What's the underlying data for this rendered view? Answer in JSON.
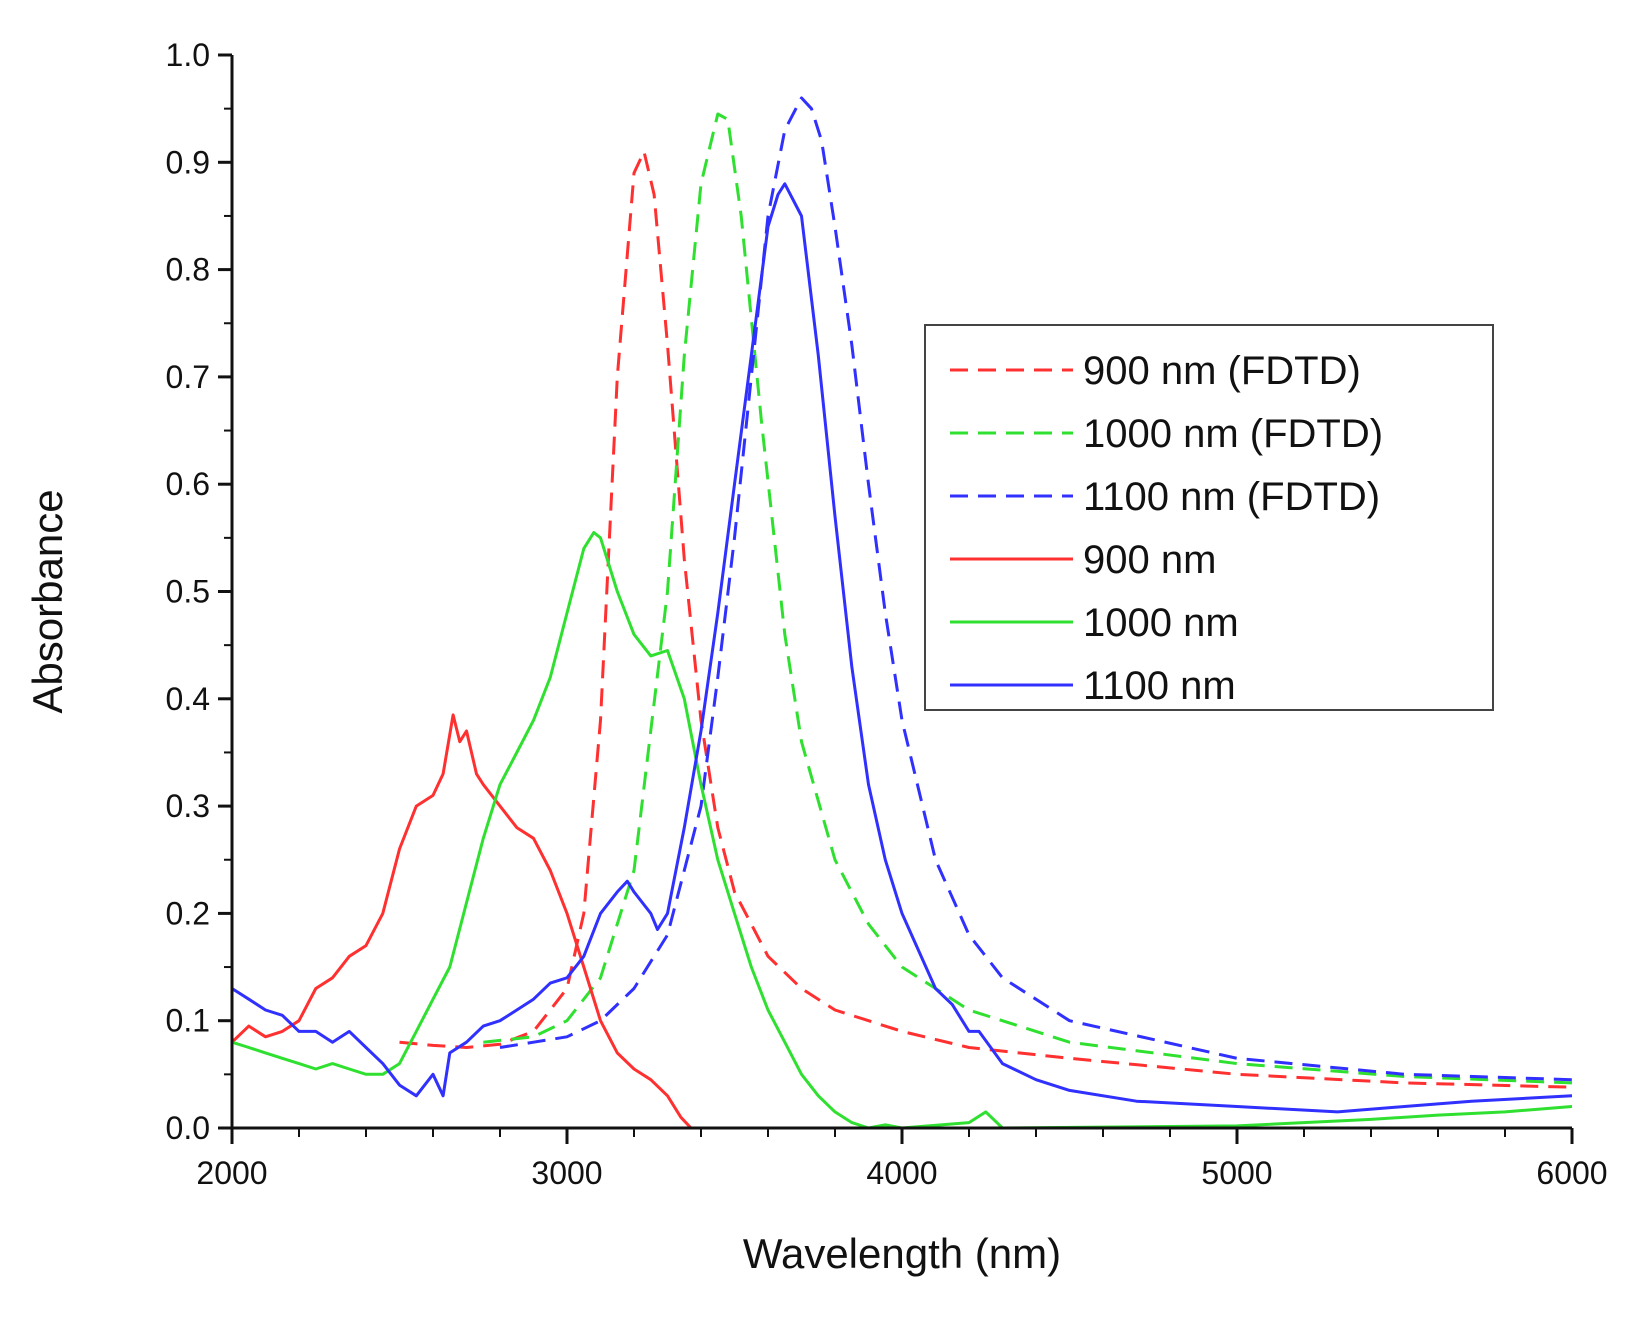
{
  "chart_data": {
    "type": "line",
    "title": "",
    "xlabel": "Wavelength (nm)",
    "ylabel": "Absorbance",
    "xlim": [
      2000,
      6000
    ],
    "ylim": [
      0.0,
      1.0
    ],
    "xticks": [
      2000,
      3000,
      4000,
      5000,
      6000
    ],
    "xtick_labels": [
      "2000",
      "3000",
      "4000",
      "5000",
      "6000"
    ],
    "yticks": [
      0.0,
      0.1,
      0.2,
      0.3,
      0.4,
      0.5,
      0.6,
      0.7,
      0.8,
      0.9,
      1.0
    ],
    "ytick_labels": [
      "0.0",
      "0.1",
      "0.2",
      "0.3",
      "0.4",
      "0.5",
      "0.6",
      "0.7",
      "0.8",
      "0.9",
      "1.0"
    ],
    "grid": false,
    "legend_position": "right",
    "series": [
      {
        "name": "900 nm (FDTD)",
        "color": "#ff3030",
        "style": "dashed",
        "x": [
          2500,
          2600,
          2700,
          2800,
          2900,
          3000,
          3050,
          3100,
          3150,
          3200,
          3230,
          3260,
          3300,
          3350,
          3400,
          3450,
          3500,
          3600,
          3700,
          3800,
          4000,
          4200,
          4500,
          5000,
          5500,
          6000
        ],
        "y": [
          0.08,
          0.077,
          0.075,
          0.078,
          0.09,
          0.13,
          0.2,
          0.38,
          0.7,
          0.89,
          0.91,
          0.87,
          0.73,
          0.53,
          0.38,
          0.28,
          0.22,
          0.16,
          0.13,
          0.11,
          0.09,
          0.075,
          0.065,
          0.05,
          0.042,
          0.038
        ]
      },
      {
        "name": "1000 nm (FDTD)",
        "color": "#30e030",
        "style": "dashed",
        "x": [
          2750,
          2900,
          3000,
          3100,
          3200,
          3300,
          3350,
          3400,
          3450,
          3480,
          3520,
          3580,
          3650,
          3700,
          3800,
          3900,
          4000,
          4200,
          4500,
          5000,
          5500,
          6000
        ],
        "y": [
          0.08,
          0.085,
          0.1,
          0.14,
          0.24,
          0.5,
          0.72,
          0.88,
          0.945,
          0.94,
          0.85,
          0.66,
          0.46,
          0.36,
          0.25,
          0.19,
          0.15,
          0.11,
          0.08,
          0.06,
          0.048,
          0.042
        ]
      },
      {
        "name": "1100 nm (FDTD)",
        "color": "#3030ff",
        "style": "dashed",
        "x": [
          2800,
          2900,
          3000,
          3100,
          3200,
          3300,
          3400,
          3450,
          3500,
          3550,
          3600,
          3650,
          3700,
          3730,
          3760,
          3800,
          3850,
          3900,
          3950,
          4000,
          4100,
          4200,
          4300,
          4500,
          5000,
          5500,
          6000
        ],
        "y": [
          0.075,
          0.08,
          0.085,
          0.1,
          0.13,
          0.18,
          0.3,
          0.42,
          0.55,
          0.7,
          0.85,
          0.93,
          0.96,
          0.95,
          0.92,
          0.84,
          0.73,
          0.6,
          0.48,
          0.38,
          0.25,
          0.18,
          0.14,
          0.1,
          0.065,
          0.05,
          0.045
        ]
      },
      {
        "name": "900 nm",
        "color": "#ff3030",
        "style": "solid",
        "x": [
          2000,
          2050,
          2100,
          2150,
          2200,
          2250,
          2300,
          2350,
          2400,
          2450,
          2500,
          2550,
          2600,
          2630,
          2660,
          2680,
          2700,
          2730,
          2750,
          2800,
          2850,
          2900,
          2950,
          3000,
          3050,
          3100,
          3150,
          3200,
          3250,
          3300,
          3340,
          3370
        ],
        "y": [
          0.08,
          0.095,
          0.085,
          0.09,
          0.1,
          0.13,
          0.14,
          0.16,
          0.17,
          0.2,
          0.26,
          0.3,
          0.31,
          0.33,
          0.385,
          0.36,
          0.37,
          0.33,
          0.32,
          0.3,
          0.28,
          0.27,
          0.24,
          0.2,
          0.15,
          0.1,
          0.07,
          0.055,
          0.045,
          0.03,
          0.01,
          0.0
        ]
      },
      {
        "name": "1000 nm",
        "color": "#30e030",
        "style": "solid",
        "x": [
          2000,
          2050,
          2100,
          2150,
          2200,
          2250,
          2300,
          2350,
          2400,
          2450,
          2500,
          2550,
          2600,
          2650,
          2700,
          2750,
          2800,
          2850,
          2900,
          2950,
          3000,
          3050,
          3080,
          3100,
          3150,
          3200,
          3250,
          3300,
          3350,
          3400,
          3450,
          3500,
          3550,
          3600,
          3650,
          3700,
          3750,
          3800,
          3850,
          3900,
          3950,
          4000,
          4200,
          4250,
          4300,
          5000,
          5400,
          5600,
          5800,
          6000
        ],
        "y": [
          0.08,
          0.075,
          0.07,
          0.065,
          0.06,
          0.055,
          0.06,
          0.055,
          0.05,
          0.05,
          0.06,
          0.09,
          0.12,
          0.15,
          0.21,
          0.27,
          0.32,
          0.35,
          0.38,
          0.42,
          0.48,
          0.54,
          0.555,
          0.55,
          0.5,
          0.46,
          0.44,
          0.445,
          0.4,
          0.32,
          0.25,
          0.2,
          0.15,
          0.11,
          0.08,
          0.05,
          0.03,
          0.015,
          0.005,
          0.0,
          0.003,
          0.0,
          0.005,
          0.015,
          0.0,
          0.002,
          0.008,
          0.012,
          0.015,
          0.02
        ]
      },
      {
        "name": "1100 nm",
        "color": "#3030ff",
        "style": "solid",
        "x": [
          2000,
          2050,
          2100,
          2150,
          2200,
          2250,
          2300,
          2350,
          2400,
          2450,
          2500,
          2550,
          2600,
          2630,
          2650,
          2700,
          2750,
          2800,
          2850,
          2900,
          2950,
          3000,
          3050,
          3100,
          3150,
          3180,
          3200,
          3250,
          3270,
          3300,
          3350,
          3400,
          3450,
          3500,
          3550,
          3600,
          3630,
          3650,
          3700,
          3750,
          3800,
          3850,
          3900,
          3950,
          4000,
          4100,
          4150,
          4200,
          4230,
          4300,
          4400,
          4500,
          4700,
          5000,
          5300,
          5500,
          5700,
          6000
        ],
        "y": [
          0.13,
          0.12,
          0.11,
          0.105,
          0.09,
          0.09,
          0.08,
          0.09,
          0.075,
          0.06,
          0.04,
          0.03,
          0.05,
          0.03,
          0.07,
          0.08,
          0.095,
          0.1,
          0.11,
          0.12,
          0.135,
          0.14,
          0.16,
          0.2,
          0.22,
          0.23,
          0.22,
          0.2,
          0.185,
          0.2,
          0.28,
          0.37,
          0.48,
          0.6,
          0.72,
          0.84,
          0.87,
          0.88,
          0.85,
          0.72,
          0.57,
          0.43,
          0.32,
          0.25,
          0.2,
          0.13,
          0.115,
          0.09,
          0.09,
          0.06,
          0.045,
          0.035,
          0.025,
          0.02,
          0.015,
          0.02,
          0.025,
          0.03
        ]
      }
    ]
  }
}
